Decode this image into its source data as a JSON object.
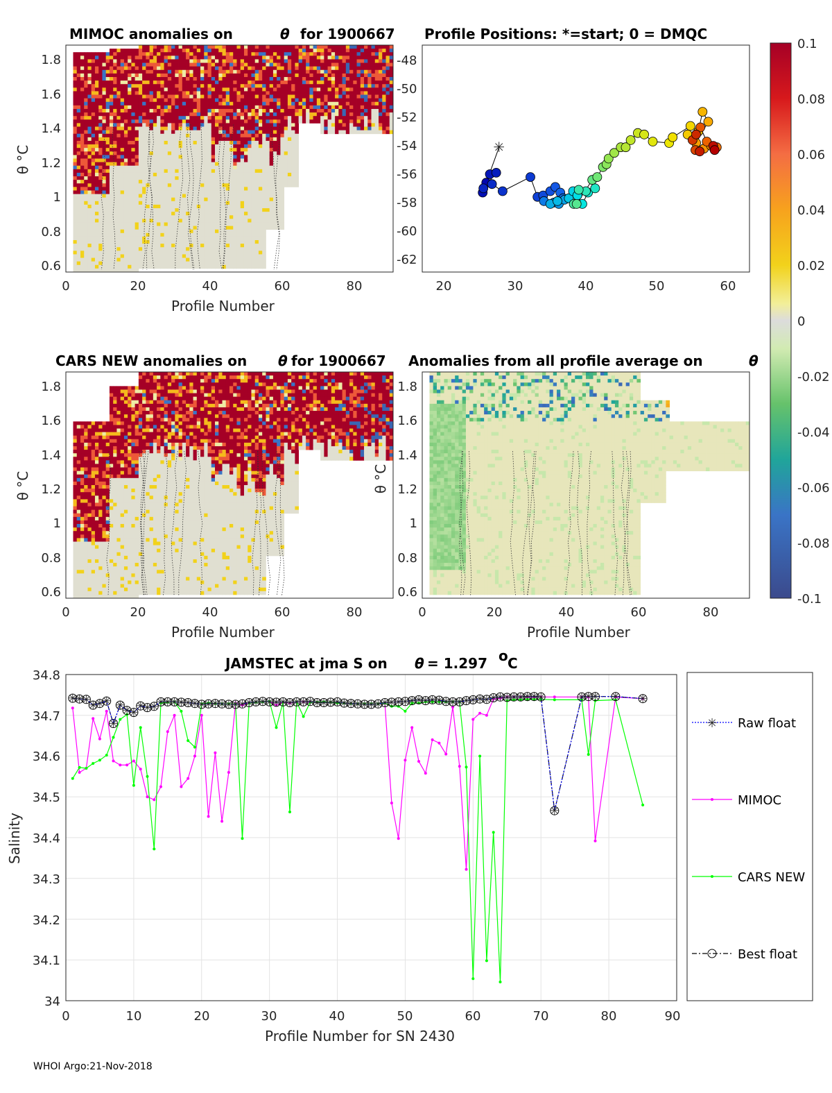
{
  "footer": "WHOI Argo:21-Nov-2018",
  "panels": {
    "mimoc": {
      "title_left": "MIMOC anomalies on",
      "title_right": "for 1900667",
      "ylabel": "θ °C",
      "xlabel": "Profile Number",
      "yticks": [
        "1.8",
        "1.6",
        "1.4",
        "1.2",
        "1",
        "0.8",
        "0.6"
      ],
      "xticks": [
        "0",
        "20",
        "40",
        "60",
        "80"
      ]
    },
    "positions": {
      "title": "Profile Positions: *=start; 0 = DMQC",
      "yticks": [
        "-48",
        "-50",
        "-52",
        "-54",
        "-56",
        "-58",
        "-60",
        "-62"
      ],
      "xticks": [
        "20",
        "30",
        "40",
        "50",
        "60"
      ]
    },
    "cars": {
      "title_left": "CARS NEW anomalies on",
      "title_right": "for 1900667",
      "ylabel": "θ °C",
      "xlabel": "Profile Number",
      "yticks": [
        "1.8",
        "1.6",
        "1.4",
        "1.2",
        "1",
        "0.8",
        "0.6"
      ],
      "xticks": [
        "0",
        "20",
        "40",
        "60",
        "80"
      ]
    },
    "average": {
      "title_left": "Anomalies from all profile average on",
      "ylabel": "θ °C",
      "xlabel": "Profile Number",
      "yticks": [
        "1.8",
        "1.6",
        "1.4",
        "1.2",
        "1",
        "0.8",
        "0.6"
      ],
      "xticks": [
        "0",
        "20",
        "40",
        "60",
        "80"
      ]
    },
    "colorbar": {
      "labels": [
        "0.1",
        "0.08",
        "0.06",
        "0.04",
        "0.02",
        "0",
        "-0.02",
        "-0.04",
        "-0.06",
        "-0.08",
        "-0.1"
      ]
    }
  },
  "salinity": {
    "title_left": "JAMSTEC at jma S on",
    "title_right": "= 1.297",
    "title_unit": "C",
    "title_deg": "o",
    "xlabel": "Profile Number for SN 2430",
    "ylabel": "Salinity",
    "yticks": [
      "34.8",
      "34.7",
      "34.6",
      "34.5",
      "34.4",
      "34.3",
      "34.2",
      "34.1",
      "34"
    ],
    "xticks": [
      "0",
      "10",
      "20",
      "30",
      "40",
      "50",
      "60",
      "70",
      "80",
      "90"
    ],
    "legend": [
      "Raw float",
      "MIMOC",
      "CARS NEW",
      "Best float"
    ]
  },
  "chart_data": [
    {
      "type": "line",
      "title": "JAMSTEC at jma S on θ = 1.297°C",
      "xlabel": "Profile Number for SN 2430",
      "ylabel": "Salinity",
      "xlim": [
        0,
        90
      ],
      "ylim": [
        34.0,
        34.8
      ],
      "series": [
        {
          "name": "Raw float",
          "color": "#0000ff",
          "x": [
            1,
            2,
            3,
            4,
            5,
            6,
            7,
            8,
            9,
            10,
            11,
            12,
            13,
            14,
            15,
            16,
            17,
            18,
            19,
            20,
            21,
            22,
            23,
            24,
            25,
            26,
            27,
            28,
            29,
            30,
            31,
            32,
            33,
            34,
            35,
            36,
            37,
            38,
            39,
            40,
            41,
            42,
            43,
            44,
            45,
            46,
            47,
            48,
            49,
            50,
            51,
            52,
            53,
            54,
            55,
            56,
            57,
            58,
            59,
            60,
            61,
            62,
            63,
            64,
            65,
            66,
            67,
            68,
            69,
            70,
            72,
            76,
            77,
            78,
            81,
            85
          ],
          "y": [
            34.742,
            34.74,
            34.739,
            34.725,
            34.729,
            34.735,
            34.68,
            34.725,
            34.712,
            34.707,
            34.723,
            34.719,
            34.722,
            34.733,
            34.733,
            34.733,
            34.732,
            34.731,
            34.729,
            34.727,
            34.728,
            34.729,
            34.728,
            34.727,
            34.727,
            34.728,
            34.731,
            34.733,
            34.734,
            34.733,
            34.732,
            34.733,
            34.731,
            34.733,
            34.733,
            34.734,
            34.731,
            34.731,
            34.732,
            34.733,
            34.73,
            34.729,
            34.728,
            34.727,
            34.727,
            34.728,
            34.731,
            34.732,
            34.733,
            34.734,
            34.736,
            34.738,
            34.736,
            34.738,
            34.737,
            34.734,
            34.733,
            34.733,
            34.736,
            34.738,
            34.74,
            34.739,
            34.743,
            34.745,
            34.744,
            34.745,
            34.745,
            34.746,
            34.746,
            34.745,
            34.466,
            34.745,
            34.746,
            34.746,
            34.746,
            34.741
          ]
        },
        {
          "name": "MIMOC",
          "color": "#ff00ff",
          "x": [
            1,
            2,
            3,
            4,
            5,
            6,
            7,
            8,
            9,
            10,
            11,
            12,
            13,
            14,
            15,
            16,
            17,
            18,
            19,
            20,
            21,
            22,
            23,
            24,
            25,
            26,
            27,
            28,
            29,
            30,
            31,
            32,
            33,
            34,
            35,
            36,
            37,
            38,
            39,
            40,
            41,
            42,
            43,
            44,
            45,
            46,
            47,
            48,
            49,
            50,
            51,
            52,
            53,
            54,
            55,
            56,
            57,
            58,
            59,
            60,
            61,
            62,
            63,
            64,
            65,
            66,
            67,
            68,
            69,
            70,
            72,
            76,
            77,
            78,
            81,
            85
          ],
          "y": [
            34.718,
            34.56,
            34.57,
            34.692,
            34.642,
            34.71,
            34.588,
            34.578,
            34.578,
            34.588,
            34.568,
            34.5,
            34.493,
            34.525,
            34.66,
            34.7,
            34.525,
            34.545,
            34.6,
            34.7,
            34.452,
            34.608,
            34.44,
            34.56,
            34.73,
            34.725,
            34.73,
            34.732,
            34.733,
            34.734,
            34.725,
            34.732,
            34.73,
            34.733,
            34.733,
            34.732,
            34.732,
            34.733,
            34.732,
            34.73,
            34.73,
            34.729,
            34.728,
            34.728,
            34.728,
            34.728,
            34.73,
            34.485,
            34.398,
            34.59,
            34.67,
            34.587,
            34.558,
            34.64,
            34.632,
            34.605,
            34.72,
            34.575,
            34.322,
            34.69,
            34.705,
            34.7,
            34.74,
            34.742,
            34.745,
            34.745,
            34.745,
            34.745,
            34.745,
            34.745,
            34.745,
            34.745,
            34.745,
            34.392,
            34.745,
            34.741
          ]
        },
        {
          "name": "CARS NEW",
          "color": "#00ff00",
          "x": [
            1,
            2,
            3,
            4,
            5,
            6,
            7,
            8,
            9,
            10,
            11,
            12,
            13,
            14,
            15,
            16,
            17,
            18,
            19,
            20,
            21,
            22,
            23,
            24,
            25,
            26,
            27,
            28,
            29,
            30,
            31,
            32,
            33,
            34,
            35,
            36,
            37,
            38,
            39,
            40,
            41,
            42,
            43,
            44,
            45,
            46,
            47,
            48,
            49,
            50,
            51,
            52,
            53,
            54,
            55,
            56,
            57,
            58,
            59,
            60,
            61,
            62,
            63,
            64,
            65,
            66,
            67,
            68,
            69,
            70,
            72,
            76,
            77,
            78,
            81,
            85
          ],
          "y": [
            34.545,
            34.572,
            34.57,
            34.582,
            34.59,
            34.602,
            34.646,
            34.69,
            34.702,
            34.528,
            34.67,
            34.55,
            34.372,
            34.73,
            34.732,
            34.733,
            34.71,
            34.638,
            34.622,
            34.728,
            34.73,
            34.729,
            34.728,
            34.728,
            34.728,
            34.398,
            34.73,
            34.732,
            34.733,
            34.734,
            34.67,
            34.732,
            34.463,
            34.733,
            34.697,
            34.732,
            34.732,
            34.733,
            34.732,
            34.73,
            34.73,
            34.729,
            34.728,
            34.728,
            34.728,
            34.728,
            34.73,
            34.722,
            34.722,
            34.71,
            34.73,
            34.73,
            34.733,
            34.733,
            34.733,
            34.733,
            34.733,
            34.733,
            34.573,
            34.054,
            34.6,
            34.098,
            34.413,
            34.046,
            34.736,
            34.738,
            34.738,
            34.739,
            34.739,
            34.739,
            34.738,
            34.738,
            34.604,
            34.736,
            34.738,
            34.48
          ]
        },
        {
          "name": "Best float",
          "color": "#000000",
          "x": [
            1,
            2,
            3,
            4,
            5,
            6,
            7,
            8,
            9,
            10,
            11,
            12,
            13,
            14,
            15,
            16,
            17,
            18,
            19,
            20,
            21,
            22,
            23,
            24,
            25,
            26,
            27,
            28,
            29,
            30,
            31,
            32,
            33,
            34,
            35,
            36,
            37,
            38,
            39,
            40,
            41,
            42,
            43,
            44,
            45,
            46,
            47,
            48,
            49,
            50,
            51,
            52,
            53,
            54,
            55,
            56,
            57,
            58,
            59,
            60,
            61,
            62,
            63,
            64,
            65,
            66,
            67,
            68,
            69,
            70,
            72,
            76,
            77,
            78,
            81,
            85
          ],
          "y": [
            34.742,
            34.74,
            34.739,
            34.725,
            34.729,
            34.735,
            34.68,
            34.725,
            34.712,
            34.707,
            34.723,
            34.719,
            34.722,
            34.733,
            34.733,
            34.733,
            34.732,
            34.731,
            34.729,
            34.727,
            34.728,
            34.729,
            34.728,
            34.727,
            34.727,
            34.728,
            34.731,
            34.733,
            34.734,
            34.733,
            34.732,
            34.733,
            34.731,
            34.733,
            34.733,
            34.734,
            34.731,
            34.731,
            34.732,
            34.733,
            34.73,
            34.729,
            34.728,
            34.727,
            34.727,
            34.728,
            34.731,
            34.732,
            34.733,
            34.734,
            34.736,
            34.738,
            34.736,
            34.738,
            34.737,
            34.734,
            34.733,
            34.733,
            34.736,
            34.738,
            34.74,
            34.739,
            34.743,
            34.745,
            34.744,
            34.745,
            34.745,
            34.746,
            34.746,
            34.745,
            34.466,
            34.745,
            34.746,
            34.746,
            34.746,
            34.741
          ]
        }
      ]
    },
    {
      "type": "scatter",
      "title": "Profile Positions: *=start; 0 = DMQC",
      "xlim": [
        17,
        63
      ],
      "ylim": [
        -63,
        -47
      ],
      "x": [
        27.8,
        26.0,
        25.5,
        26.5,
        27.4,
        25.6,
        26.8,
        28.3,
        32.2,
        33.2,
        34.0,
        35.0,
        35.7,
        36.4,
        36.8,
        34.1,
        35.5,
        36.2,
        37.0,
        35.0,
        36.0,
        37.6,
        38.2,
        38.8,
        39.5,
        40.3,
        41.3,
        40.0,
        39.0,
        38.3,
        38.7,
        40.9,
        41.6,
        42.4,
        42.9,
        43.2,
        44.0,
        44.9,
        45.6,
        46.3,
        47.3,
        48.2,
        49.4,
        51.7,
        52.2,
        54.7,
        54.3,
        55.8,
        56.4,
        57.2,
        55.5,
        56.6,
        57.6,
        58.1,
        58.4,
        57.0,
        56.1,
        55.4,
        55.0,
        55.5,
        56.0,
        57.9,
        58.1
      ],
      "y": [
        -54.2,
        -56.7,
        -57.4,
        -56.1,
        -56.0,
        -57.1,
        -56.8,
        -57.3,
        -56.3,
        -57.7,
        -57.6,
        -57.3,
        -57.0,
        -57.4,
        -57.8,
        -58.0,
        -58.1,
        -58.2,
        -57.9,
        -58.2,
        -58.0,
        -57.8,
        -57.3,
        -57.6,
        -58.2,
        -57.4,
        -57.1,
        -57.3,
        -57.2,
        -58.2,
        -58.2,
        -56.5,
        -56.3,
        -55.6,
        -55.4,
        -55.0,
        -54.6,
        -54.2,
        -54.2,
        -53.7,
        -53.2,
        -53.3,
        -53.8,
        -53.9,
        -53.5,
        -52.7,
        -53.3,
        -53.1,
        -51.7,
        -52.4,
        -53.9,
        -54.3,
        -54.1,
        -54.3,
        -54.2,
        -53.8,
        -52.8,
        -54.4,
        -53.7,
        -53.3,
        -54.5,
        -54.1,
        -54.4
      ],
      "start_marker": [
        27.8,
        -54.2
      ]
    },
    {
      "type": "heatmap",
      "title": "MIMOC / CARS NEW / all-profile-average anomalies on θ for 1900667",
      "xlabel": "Profile Number",
      "ylabel": "θ °C",
      "xlim": [
        0,
        90
      ],
      "ylim": [
        0.55,
        1.88
      ],
      "colorbar": {
        "min": -0.1,
        "max": 0.1
      }
    }
  ]
}
